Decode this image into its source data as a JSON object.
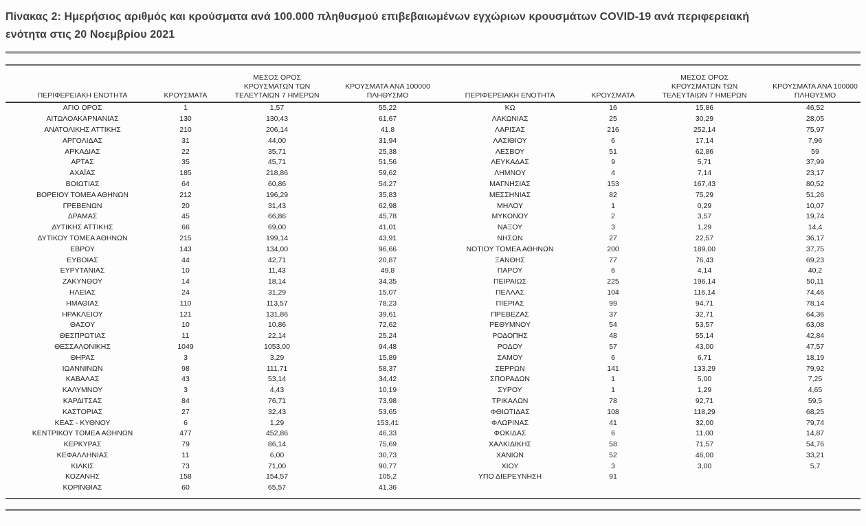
{
  "title": "Πίνακας 2:  Ημερήσιος αριθμός και κρούσματα ανά 100.000 πληθυσμού επιβεβαιωμένων εγχώριων κρουσμάτων COVID-19 ανά περιφερειακή\nενότητα στις 20 Νοεμβρίου 2021",
  "columns": [
    "ΠΕΡΙΦΕΡΕΙΑΚΗ ΕΝΟΤΗΤΑ",
    "ΚΡΟΥΣΜΑΤΑ",
    "ΜΕΣΟΣ ΟΡΟΣ\nΚΡΟΥΣΜΑΤΩΝ ΤΩΝ\nΤΕΛΕΥΤΑΙΩΝ 7 ΗΜΕΡΩΝ",
    "ΚΡΟΥΣΜΑΤΑ ΑΝΑ 100000\nΠΛΗΘΥΣΜΟ"
  ],
  "left_rows": [
    [
      "ΑΓΙΟ ΟΡΟΣ",
      "1",
      "1,57",
      "55,22"
    ],
    [
      "ΑΙΤΩΛΟΑΚΑΡΝΑΝΙΑΣ",
      "130",
      "130,43",
      "61,67"
    ],
    [
      "ΑΝΑΤΟΛΙΚΗΣ ΑΤΤΙΚΗΣ",
      "210",
      "206,14",
      "41,8"
    ],
    [
      "ΑΡΓΟΛΙΔΑΣ",
      "31",
      "44,00",
      "31,94"
    ],
    [
      "ΑΡΚΑΔΙΑΣ",
      "22",
      "35,71",
      "25,38"
    ],
    [
      "ΑΡΤΑΣ",
      "35",
      "45,71",
      "51,56"
    ],
    [
      "ΑΧΑΪΑΣ",
      "185",
      "218,86",
      "59,62"
    ],
    [
      "ΒΟΙΩΤΙΑΣ",
      "64",
      "60,86",
      "54,27"
    ],
    [
      "ΒΟΡΕΙΟΥ ΤΟΜΕΑ ΑΘΗΝΩΝ",
      "212",
      "196,29",
      "35,83"
    ],
    [
      "ΓΡΕΒΕΝΩΝ",
      "20",
      "31,43",
      "62,98"
    ],
    [
      "ΔΡΑΜΑΣ",
      "45",
      "66,86",
      "45,78"
    ],
    [
      "ΔΥΤΙΚΗΣ ΑΤΤΙΚΗΣ",
      "66",
      "69,00",
      "41,01"
    ],
    [
      "ΔΥΤΙΚΟΥ ΤΟΜΕΑ ΑΘΗΝΩΝ",
      "215",
      "199,14",
      "43,91"
    ],
    [
      "ΕΒΡΟΥ",
      "143",
      "134,00",
      "96,66"
    ],
    [
      "ΕΥΒΟΙΑΣ",
      "44",
      "42,71",
      "20,87"
    ],
    [
      "ΕΥΡΥΤΑΝΙΑΣ",
      "10",
      "11,43",
      "49,8"
    ],
    [
      "ΖΑΚΥΝΘΟΥ",
      "14",
      "18,14",
      "34,35"
    ],
    [
      "ΗΛΕΙΑΣ",
      "24",
      "31,29",
      "15,07"
    ],
    [
      "ΗΜΑΘΙΑΣ",
      "110",
      "113,57",
      "78,23"
    ],
    [
      "ΗΡΑΚΛΕΙΟΥ",
      "121",
      "131,86",
      "39,61"
    ],
    [
      "ΘΑΣΟΥ",
      "10",
      "10,86",
      "72,62"
    ],
    [
      "ΘΕΣΠΡΩΤΙΑΣ",
      "11",
      "22,14",
      "25,24"
    ],
    [
      "ΘΕΣΣΑΛΟΝΙΚΗΣ",
      "1049",
      "1053,00",
      "94,48"
    ],
    [
      "ΘΗΡΑΣ",
      "3",
      "3,29",
      "15,89"
    ],
    [
      "ΙΩΑΝΝΙΝΩΝ",
      "98",
      "111,71",
      "58,37"
    ],
    [
      "ΚΑΒΑΛΑΣ",
      "43",
      "53,14",
      "34,42"
    ],
    [
      "ΚΑΛΥΜΝΟΥ",
      "3",
      "4,43",
      "10,19"
    ],
    [
      "ΚΑΡΔΙΤΣΑΣ",
      "84",
      "76,71",
      "73,98"
    ],
    [
      "ΚΑΣΤΟΡΙΑΣ",
      "27",
      "32,43",
      "53,65"
    ],
    [
      "ΚΕΑΣ - ΚΥΘΝΟΥ",
      "6",
      "1,29",
      "153,41"
    ],
    [
      "ΚΕΝΤΡΙΚΟΥ ΤΟΜΕΑ ΑΘΗΝΩΝ",
      "477",
      "452,86",
      "46,33"
    ],
    [
      "ΚΕΡΚΥΡΑΣ",
      "79",
      "86,14",
      "75,69"
    ],
    [
      "ΚΕΦΑΛΛΗΝΙΑΣ",
      "11",
      "6,00",
      "30,73"
    ],
    [
      "ΚΙΛΚΙΣ",
      "73",
      "71,00",
      "90,77"
    ],
    [
      "ΚΟΖΑΝΗΣ",
      "158",
      "154,57",
      "105,2"
    ],
    [
      "ΚΟΡΙΝΘΙΑΣ",
      "60",
      "65,57",
      "41,36"
    ]
  ],
  "right_rows": [
    [
      "ΚΩ",
      "16",
      "15,86",
      "46,52"
    ],
    [
      "ΛΑΚΩΝΙΑΣ",
      "25",
      "30,29",
      "28,05"
    ],
    [
      "ΛΑΡΙΣΑΣ",
      "216",
      "252,14",
      "75,97"
    ],
    [
      "ΛΑΣΙΘΙΟΥ",
      "6",
      "17,14",
      "7,96"
    ],
    [
      "ΛΕΣΒΟΥ",
      "51",
      "62,86",
      "59"
    ],
    [
      "ΛΕΥΚΑΔΑΣ",
      "9",
      "5,71",
      "37,99"
    ],
    [
      "ΛΗΜΝΟΥ",
      "4",
      "7,14",
      "23,17"
    ],
    [
      "ΜΑΓΝΗΣΙΑΣ",
      "153",
      "167,43",
      "80,52"
    ],
    [
      "ΜΕΣΣΗΝΙΑΣ",
      "82",
      "75,29",
      "51,26"
    ],
    [
      "ΜΗΛΟΥ",
      "1",
      "0,29",
      "10,07"
    ],
    [
      "ΜΥΚΟΝΟΥ",
      "2",
      "3,57",
      "19,74"
    ],
    [
      "ΝΑΞΟΥ",
      "3",
      "1,29",
      "14,4"
    ],
    [
      "ΝΗΣΩΝ",
      "27",
      "22,57",
      "36,17"
    ],
    [
      "ΝΟΤΙΟΥ ΤΟΜΕΑ ΑΘΗΝΩΝ",
      "200",
      "189,00",
      "37,75"
    ],
    [
      "ΞΑΝΘΗΣ",
      "77",
      "76,43",
      "69,23"
    ],
    [
      "ΠΑΡΟΥ",
      "6",
      "4,14",
      "40,2"
    ],
    [
      "ΠΕΙΡΑΙΩΣ",
      "225",
      "196,14",
      "50,11"
    ],
    [
      "ΠΕΛΛΑΣ",
      "104",
      "116,14",
      "74,46"
    ],
    [
      "ΠΙΕΡΙΑΣ",
      "99",
      "94,71",
      "78,14"
    ],
    [
      "ΠΡΕΒΕΖΑΣ",
      "37",
      "32,71",
      "64,36"
    ],
    [
      "ΡΕΘΥΜΝΟΥ",
      "54",
      "53,57",
      "63,08"
    ],
    [
      "ΡΟΔΟΠΗΣ",
      "48",
      "55,14",
      "42,84"
    ],
    [
      "ΡΟΔΟΥ",
      "57",
      "43,00",
      "47,57"
    ],
    [
      "ΣΑΜΟΥ",
      "6",
      "6,71",
      "18,19"
    ],
    [
      "ΣΕΡΡΩΝ",
      "141",
      "133,29",
      "79,92"
    ],
    [
      "ΣΠΟΡΑΔΩΝ",
      "1",
      "5,00",
      "7,25"
    ],
    [
      "ΣΥΡΟΥ",
      "1",
      "1,29",
      "4,65"
    ],
    [
      "ΤΡΙΚΑΛΩΝ",
      "78",
      "92,71",
      "59,5"
    ],
    [
      "ΦΘΙΩΤΙΔΑΣ",
      "108",
      "118,29",
      "68,25"
    ],
    [
      "ΦΛΩΡΙΝΑΣ",
      "41",
      "32,00",
      "79,74"
    ],
    [
      "ΦΩΚΙΔΑΣ",
      "6",
      "11,00",
      "14,87"
    ],
    [
      "ΧΑΛΚΙΔΙΚΗΣ",
      "58",
      "71,57",
      "54,76"
    ],
    [
      "ΧΑΝΙΩΝ",
      "52",
      "46,00",
      "33,21"
    ],
    [
      "ΧΙΟΥ",
      "3",
      "3,00",
      "5,7"
    ],
    [
      "ΥΠΟ ΔΙΕΡΕΥΝΗΣΗ",
      "91",
      "",
      ""
    ]
  ]
}
